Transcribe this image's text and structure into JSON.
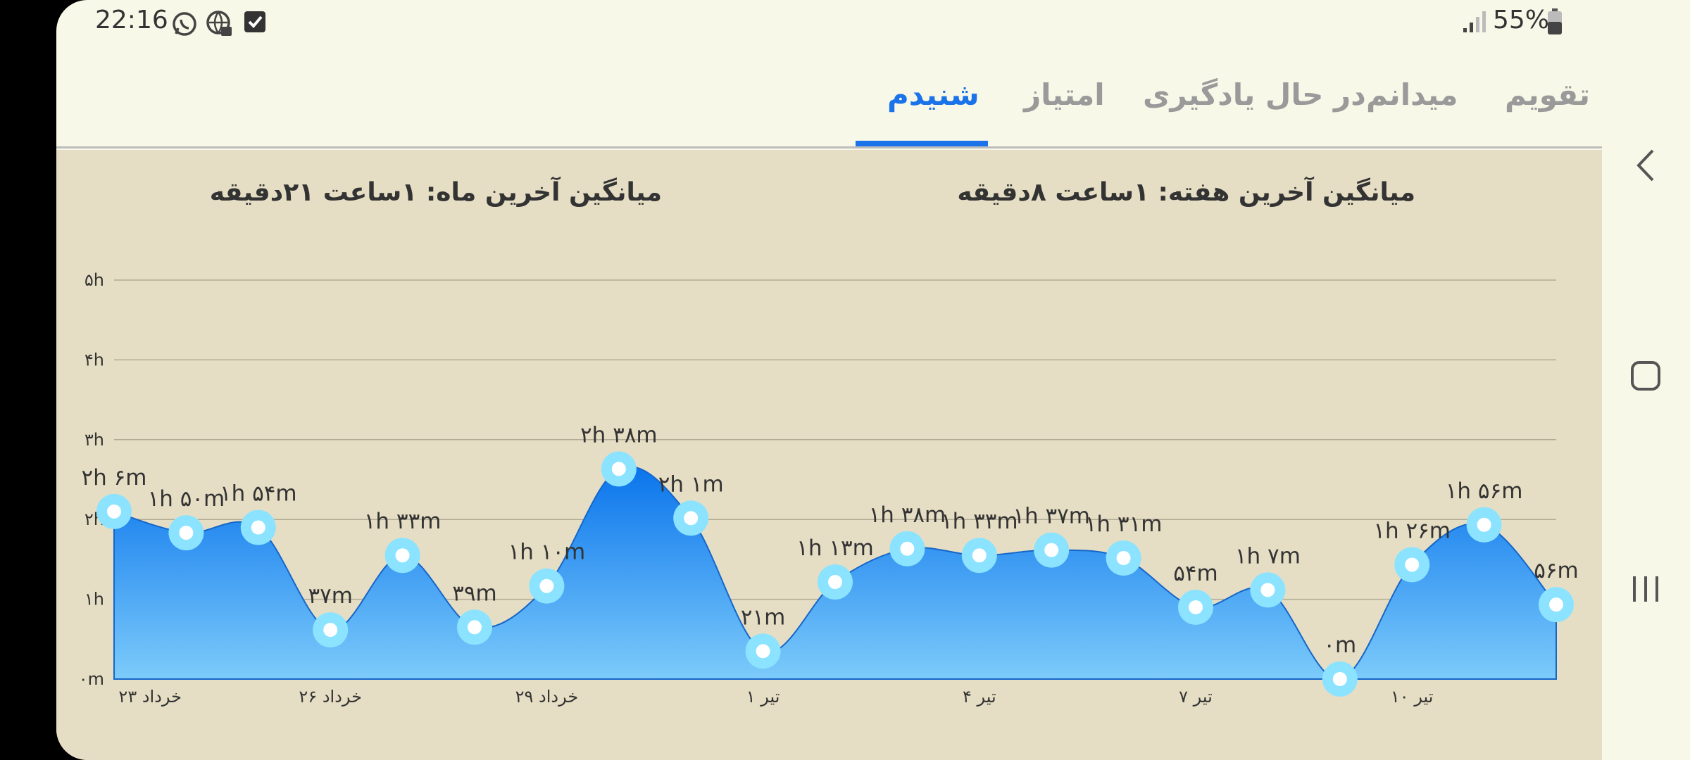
{
  "status_bar": {
    "time": "22:16",
    "battery": "55%",
    "icons": [
      "whatsapp-icon",
      "vpn-icon",
      "checkbox-icon",
      "signal-icon",
      "battery-icon"
    ]
  },
  "tabs": [
    {
      "label": "شنیدم",
      "active": true
    },
    {
      "label": "امتیاز",
      "active": false
    },
    {
      "label": "در حال یادگیری",
      "active": false
    },
    {
      "label": "میدانم",
      "active": false
    },
    {
      "label": "تقویم",
      "active": false
    }
  ],
  "averages": {
    "month": "میانگین آخرین ماه:  ۱ساعت  ۲۱دقیقه",
    "week": "میانگین آخرین هفته:  ۱ساعت  ۸دقیقه"
  },
  "colors": {
    "accent": "#1a73e8",
    "area_top": "#0a74ec",
    "area_bottom": "#7ccbfa",
    "point": "#8be3ff"
  },
  "chart_data": {
    "type": "area",
    "y_unit": "minutes",
    "ylim": [
      0,
      300
    ],
    "y_ticks": [
      {
        "value": 0,
        "label": "۰m"
      },
      {
        "value": 60,
        "label": "۱h"
      },
      {
        "value": 120,
        "label": "۲h"
      },
      {
        "value": 180,
        "label": "۳h"
      },
      {
        "value": 240,
        "label": "۴h"
      },
      {
        "value": 300,
        "label": "۵h"
      }
    ],
    "x_labels": [
      {
        "index": 0.5,
        "label": "۲۳ خرداد"
      },
      {
        "index": 3,
        "label": "۲۶ خرداد"
      },
      {
        "index": 6,
        "label": "۲۹ خرداد"
      },
      {
        "index": 9,
        "label": "۱ تیر"
      },
      {
        "index": 12,
        "label": "۴ تیر"
      },
      {
        "index": 15,
        "label": "۷ تیر"
      },
      {
        "index": 18,
        "label": "۱۰ تیر"
      }
    ],
    "points": [
      {
        "value": 126,
        "label": "۲h ۶m"
      },
      {
        "value": 110,
        "label": "۱h ۵۰m"
      },
      {
        "value": 114,
        "label": "۱h ۵۴m"
      },
      {
        "value": 37,
        "label": "۳۷m"
      },
      {
        "value": 93,
        "label": "۱h ۳۳m"
      },
      {
        "value": 39,
        "label": "۳۹m"
      },
      {
        "value": 70,
        "label": "۱h ۱۰m"
      },
      {
        "value": 158,
        "label": "۲h ۳۸m"
      },
      {
        "value": 121,
        "label": "۲h ۱m"
      },
      {
        "value": 21,
        "label": "۲۱m"
      },
      {
        "value": 73,
        "label": "۱h ۱۳m"
      },
      {
        "value": 98,
        "label": "۱h ۳۸m"
      },
      {
        "value": 93,
        "label": "۱h ۳۳m"
      },
      {
        "value": 97,
        "label": "۱h ۳۷m"
      },
      {
        "value": 91,
        "label": "۱h ۳۱m"
      },
      {
        "value": 54,
        "label": "۵۴m"
      },
      {
        "value": 67,
        "label": "۱h ۷m"
      },
      {
        "value": 0,
        "label": "۰m"
      },
      {
        "value": 86,
        "label": "۱h ۲۶m"
      },
      {
        "value": 116,
        "label": "۱h ۵۶m"
      },
      {
        "value": 56,
        "label": "۵۶m"
      }
    ]
  }
}
